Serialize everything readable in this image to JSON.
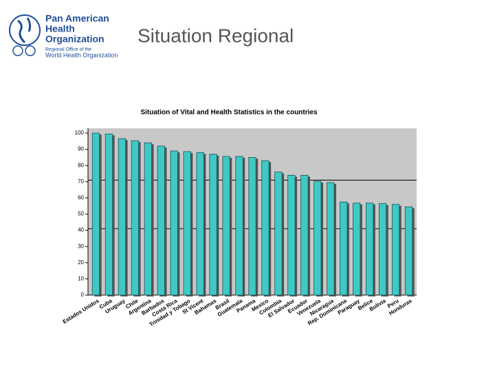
{
  "header": {
    "org_line1": "Pan American",
    "org_line2": "Health",
    "org_line3": "Organization",
    "office_line1": "Regional Office of the",
    "office_line2": "World Health Organization",
    "slide_title": "Situation Regional"
  },
  "chart_data": {
    "type": "bar",
    "title": "Situation of Vital and Health Statistics in the countries",
    "categories": [
      "Estados Unidos",
      "Cuba",
      "Uruguay",
      "Chile",
      "Argentina",
      "Barbados",
      "Costa Rica",
      "Trinidad y Tobago",
      "St Vicent",
      "Bahamas",
      "Brasil",
      "Guatemala",
      "Panama",
      "Mexico",
      "Colombia",
      "El Salvador",
      "Ecuador",
      "Venezuela",
      "Nicaragua",
      "Rep. Dominicana",
      "Paraguay",
      "Belice",
      "Bolivia",
      "Peru",
      "Honduras"
    ],
    "values": [
      100,
      99.5,
      96.6,
      95.3,
      94,
      92,
      89,
      88.6,
      88,
      87,
      85.6,
      85.6,
      85,
      83,
      76,
      74,
      74,
      70.3,
      69.5,
      57.5,
      56.8,
      56.8,
      56.5,
      56,
      54.5
    ],
    "color": "#3ec9c6",
    "reference_lines": [
      71,
      41
    ],
    "ylim": [
      0,
      100
    ],
    "yticks": [
      0,
      10,
      20,
      30,
      40,
      50,
      60,
      70,
      80,
      90,
      100
    ],
    "grid": false
  }
}
